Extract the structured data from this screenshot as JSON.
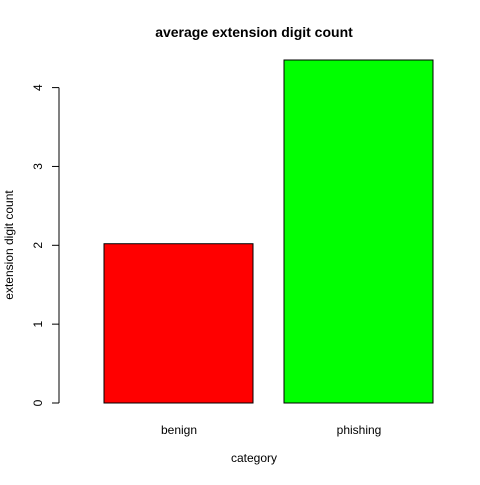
{
  "chart_data": {
    "type": "bar",
    "title": "average extension digit count",
    "xlabel": "category",
    "ylabel": "extension digit count",
    "categories": [
      "benign",
      "phishing"
    ],
    "values": [
      2.02,
      4.35
    ],
    "colors": [
      "#ff0000",
      "#00ff00"
    ],
    "bar_border_color": "#000000",
    "ylim": [
      0,
      4.35
    ],
    "yticks": [
      0,
      1,
      2,
      3,
      4
    ],
    "grid": false,
    "legend": "none"
  }
}
